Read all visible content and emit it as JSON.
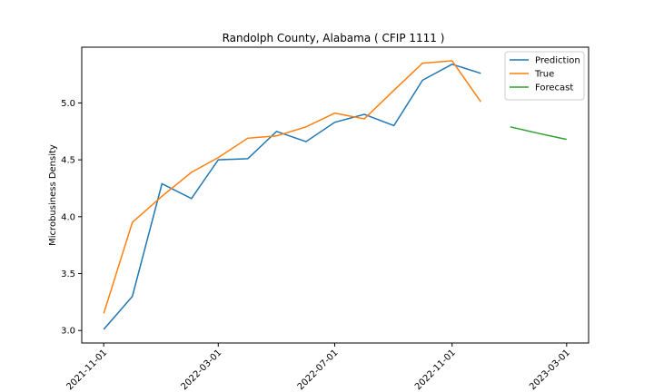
{
  "chart_data": {
    "type": "line",
    "title": "Randolph County, Alabama ( CFIP 1111 )",
    "xlabel": "",
    "ylabel": "Microbusiness Density",
    "x_ticks": [
      "2021-11-01",
      "2022-03-01",
      "2022-07-01",
      "2022-11-01",
      "2023-03-01"
    ],
    "y_ticks": [
      "3.0",
      "3.5",
      "4.0",
      "4.5",
      "5.0"
    ],
    "xlim": [
      "2021-10-09",
      "2023-03-24"
    ],
    "ylim": [
      2.89,
      5.49
    ],
    "grid": false,
    "legend_position": "top-right",
    "series": [
      {
        "name": "Prediction",
        "color": "#1f77b4",
        "x": [
          "2021-11-01",
          "2021-12-01",
          "2022-01-01",
          "2022-02-01",
          "2022-03-01",
          "2022-04-01",
          "2022-05-01",
          "2022-06-01",
          "2022-07-01",
          "2022-08-01",
          "2022-09-01",
          "2022-10-01",
          "2022-11-01",
          "2022-12-01"
        ],
        "values": [
          3.01,
          3.3,
          4.29,
          4.16,
          4.5,
          4.51,
          4.75,
          4.66,
          4.83,
          4.9,
          4.8,
          5.2,
          5.34,
          5.26
        ]
      },
      {
        "name": "True",
        "color": "#ff7f0e",
        "x": [
          "2021-11-01",
          "2021-12-01",
          "2022-01-01",
          "2022-02-01",
          "2022-03-01",
          "2022-04-01",
          "2022-05-01",
          "2022-06-01",
          "2022-07-01",
          "2022-08-01",
          "2022-09-01",
          "2022-10-01",
          "2022-11-01",
          "2022-12-01"
        ],
        "values": [
          3.15,
          3.95,
          4.18,
          4.39,
          4.52,
          4.69,
          4.71,
          4.79,
          4.91,
          4.86,
          5.11,
          5.35,
          5.37,
          5.01
        ]
      },
      {
        "name": "Forecast",
        "color": "#2ca02c",
        "x": [
          "2023-01-01",
          "2023-02-01",
          "2023-03-01"
        ],
        "values": [
          4.79,
          4.73,
          4.68
        ]
      }
    ]
  }
}
